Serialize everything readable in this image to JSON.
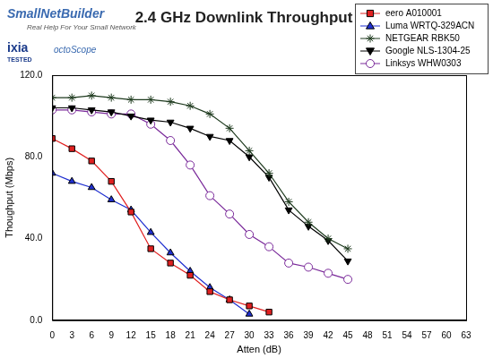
{
  "chart_data": {
    "type": "line",
    "title": "2.4 GHz Downlink Throughput",
    "x_label": "Atten (dB)",
    "y_label": "Thoughput (Mbps)",
    "annotations": [
      "SmallNetBuilder",
      "Real Help For Your Small Network",
      "ixia",
      "TESTED",
      "octoScope"
    ],
    "x": [
      0,
      3,
      6,
      9,
      12,
      15,
      18,
      21,
      24,
      27,
      30,
      33,
      36,
      39,
      42,
      45
    ],
    "series": [
      {
        "name": "eero A010001",
        "color": "#e02020",
        "marker": "square",
        "line_style": "solid",
        "values": [
          89,
          84,
          78,
          68,
          53,
          35,
          28,
          22,
          14,
          10,
          7,
          4,
          null,
          null,
          null,
          null
        ]
      },
      {
        "name": "Luma WRTQ-329ACN",
        "color": "#1f2fd0",
        "marker": "triangle",
        "line_style": "solid",
        "values": [
          72,
          68,
          65,
          59,
          54,
          43,
          33,
          24,
          16,
          10,
          3,
          null,
          null,
          null,
          null,
          null
        ]
      },
      {
        "name": "NETGEAR RBK50",
        "color": "#1e3a1e",
        "marker": "star",
        "line_style": "solid",
        "values": [
          109,
          109,
          110,
          109,
          108,
          108,
          107,
          105,
          101,
          94,
          83,
          72,
          58,
          48,
          40,
          35
        ]
      },
      {
        "name": "Google NLS-1304-25",
        "color": "#000000",
        "marker": "triangle_down",
        "line_style": "solid",
        "values": [
          104,
          104,
          103,
          102,
          100,
          98,
          97,
          94,
          90,
          88,
          80,
          70,
          54,
          46,
          39,
          29
        ]
      },
      {
        "name": "Linksys WHW0303",
        "color": "#7a2a9a",
        "marker": "open_circle",
        "line_style": "solid",
        "values": [
          103,
          103,
          102,
          101,
          101,
          96,
          88,
          76,
          61,
          52,
          42,
          36,
          28,
          26,
          23,
          20
        ]
      }
    ],
    "xlim": [
      0,
      63
    ],
    "xticks": [
      0,
      3,
      6,
      9,
      12,
      15,
      18,
      21,
      24,
      27,
      30,
      33,
      36,
      39,
      42,
      45,
      48,
      51,
      54,
      57,
      60,
      63
    ],
    "ylim": [
      0,
      120
    ],
    "yticks": [
      {
        "value": 0,
        "label": "0.0"
      },
      {
        "value": 40,
        "label": "40.0"
      },
      {
        "value": 80,
        "label": "80.0"
      },
      {
        "value": 120,
        "label": "120.0"
      }
    ],
    "grid": false,
    "legend": "upper right"
  }
}
